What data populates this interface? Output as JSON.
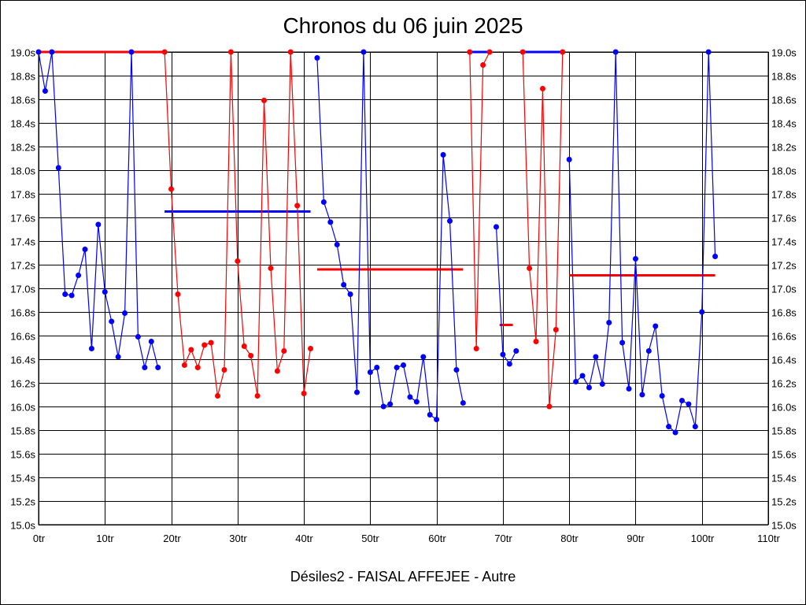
{
  "chart_data": {
    "type": "line",
    "title": "Chronos du 06 juin 2025",
    "xlabel": "Désiles2 - FAISAL AFFEJEE - Autre",
    "ylabel": "",
    "xlim": [
      0,
      110
    ],
    "ylim": [
      15.0,
      19.0
    ],
    "grid": true,
    "x_ticks": [
      0,
      10,
      20,
      30,
      40,
      50,
      60,
      70,
      80,
      90,
      100,
      110
    ],
    "x_tick_labels": [
      "0tr",
      "10tr",
      "20tr",
      "30tr",
      "40tr",
      "50tr",
      "60tr",
      "70tr",
      "80tr",
      "90tr",
      "100tr",
      "110tr"
    ],
    "y_ticks": [
      15.0,
      15.2,
      15.4,
      15.6,
      15.8,
      16.0,
      16.2,
      16.4,
      16.6,
      16.8,
      17.0,
      17.2,
      17.4,
      17.6,
      17.8,
      18.0,
      18.2,
      18.4,
      18.6,
      18.8,
      19.0
    ],
    "y_tick_labels": [
      "15.0s",
      "15.2s",
      "15.4s",
      "15.6s",
      "15.8s",
      "16.0s",
      "16.2s",
      "16.4s",
      "16.6s",
      "16.8s",
      "17.0s",
      "17.2s",
      "17.4s",
      "17.6s",
      "17.8s",
      "18.0s",
      "18.2s",
      "18.4s",
      "18.6s",
      "18.8s",
      "19.0s"
    ],
    "colors": {
      "blue": "#0000ff",
      "red": "#ff0000"
    },
    "series": [
      {
        "name": "stint-1",
        "color": "blue",
        "x0": 0,
        "values": [
          19.0,
          18.67,
          19.0,
          18.02,
          16.95,
          16.94,
          17.11,
          17.33,
          16.49,
          17.54,
          16.97,
          16.72,
          16.42,
          16.79,
          19.0,
          16.59,
          16.33,
          16.55,
          16.33
        ]
      },
      {
        "name": "stint-2",
        "color": "red",
        "x0": 19,
        "values": [
          19.0,
          17.84,
          16.95,
          16.35,
          16.48,
          16.33,
          16.52,
          16.54,
          16.09,
          16.31,
          19.0,
          17.23,
          16.51,
          16.43,
          16.09,
          18.59,
          17.17,
          16.3,
          16.47,
          19.0,
          17.7,
          16.11,
          16.49
        ]
      },
      {
        "name": "stint-3",
        "color": "blue",
        "x0": 42,
        "values": [
          18.95,
          17.73,
          17.56,
          17.37,
          17.03,
          16.95,
          16.12,
          19.0,
          16.29,
          16.33,
          16.0,
          16.02,
          16.33,
          16.35,
          16.08,
          16.04,
          16.42,
          15.93,
          15.89,
          18.13,
          17.57,
          16.31,
          16.03
        ]
      },
      {
        "name": "stint-4",
        "color": "red",
        "x0": 65,
        "values": [
          19.0,
          16.49,
          18.89,
          19.0
        ]
      },
      {
        "name": "stint-5",
        "color": "blue",
        "x0": 69,
        "values": [
          17.52,
          16.44,
          16.36,
          16.47
        ]
      },
      {
        "name": "stint-6",
        "color": "red",
        "x0": 73,
        "values": [
          19.0,
          17.17,
          16.55,
          18.69,
          16.0,
          16.65,
          19.0
        ]
      },
      {
        "name": "stint-7",
        "color": "blue",
        "x0": 80,
        "values": [
          18.09,
          16.21,
          16.26,
          16.16,
          16.42,
          16.19,
          16.71,
          19.0,
          16.54,
          16.15,
          17.25,
          16.1,
          16.47,
          16.68,
          16.09,
          15.83,
          15.78,
          16.05,
          16.02,
          15.83,
          16.8,
          19.0,
          17.27
        ]
      }
    ],
    "averages": [
      {
        "color": "red",
        "from": 0,
        "to": 19,
        "value": 19.0
      },
      {
        "color": "blue",
        "from": 19,
        "to": 41,
        "value": 17.65
      },
      {
        "color": "red",
        "from": 42,
        "to": 64,
        "value": 17.16
      },
      {
        "color": "blue",
        "from": 65,
        "to": 68,
        "value": 19.0
      },
      {
        "color": "red",
        "from": 69.5,
        "to": 71.5,
        "value": 16.69
      },
      {
        "color": "blue",
        "from": 73,
        "to": 79,
        "value": 19.0
      },
      {
        "color": "red",
        "from": 80,
        "to": 102,
        "value": 17.11
      }
    ]
  }
}
